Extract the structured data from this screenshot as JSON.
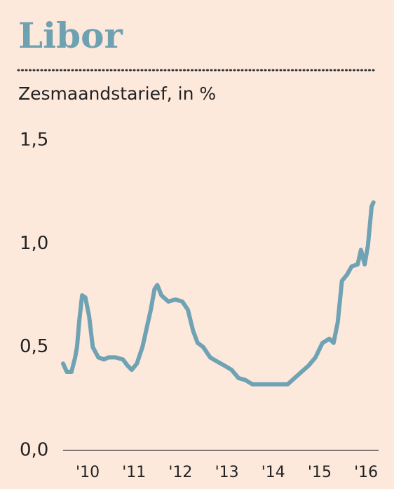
{
  "chart_data": {
    "type": "line",
    "title": "Libor",
    "subtitle": "Zesmaandstarief, in %",
    "x": [
      2009.47,
      2009.55,
      2009.65,
      2009.73,
      2009.77,
      2009.82,
      2009.88,
      2009.95,
      2010.03,
      2010.11,
      2010.23,
      2010.35,
      2010.45,
      2010.6,
      2010.76,
      2010.86,
      2010.95,
      2011.06,
      2011.18,
      2011.28,
      2011.36,
      2011.44,
      2011.5,
      2011.59,
      2011.74,
      2011.89,
      2012.04,
      2012.16,
      2012.27,
      2012.37,
      2012.49,
      2012.64,
      2012.79,
      2012.95,
      2013.1,
      2013.25,
      2013.4,
      2013.55,
      2013.7,
      2013.85,
      2014.08,
      2014.31,
      2014.46,
      2014.61,
      2014.76,
      2014.91,
      2015.06,
      2015.21,
      2015.3,
      2015.39,
      2015.48,
      2015.59,
      2015.69,
      2015.82,
      2015.89,
      2015.97,
      2016.04,
      2016.12,
      2016.16
    ],
    "series": [
      {
        "color": "#6fa3b3",
        "values": [
          0.42,
          0.38,
          0.38,
          0.45,
          0.5,
          0.63,
          0.75,
          0.74,
          0.65,
          0.5,
          0.45,
          0.44,
          0.45,
          0.45,
          0.44,
          0.41,
          0.39,
          0.42,
          0.5,
          0.6,
          0.68,
          0.78,
          0.8,
          0.75,
          0.72,
          0.73,
          0.72,
          0.68,
          0.58,
          0.52,
          0.5,
          0.45,
          0.43,
          0.41,
          0.39,
          0.35,
          0.34,
          0.32,
          0.32,
          0.32,
          0.32,
          0.32,
          0.35,
          0.38,
          0.41,
          0.45,
          0.52,
          0.54,
          0.52,
          0.62,
          0.82,
          0.85,
          0.89,
          0.9,
          0.97,
          0.9,
          0.99,
          1.18,
          1.2
        ]
      }
    ],
    "xlim": [
      2009.47,
      2016.27
    ],
    "xticks": [
      {
        "value": 2010,
        "label": "'10"
      },
      {
        "value": 2011,
        "label": "'11"
      },
      {
        "value": 2012,
        "label": "'12"
      },
      {
        "value": 2013,
        "label": "'13"
      },
      {
        "value": 2014,
        "label": "'14"
      },
      {
        "value": 2015,
        "label": "'15"
      },
      {
        "value": 2016,
        "label": "'16"
      }
    ],
    "ylim": [
      0,
      1.5
    ],
    "yticks": [
      {
        "value": 0,
        "label": "0,0"
      },
      {
        "value": 0.5,
        "label": "0,5"
      },
      {
        "value": 1,
        "label": "1,0"
      },
      {
        "value": 1.5,
        "label": "1,5"
      }
    ]
  }
}
